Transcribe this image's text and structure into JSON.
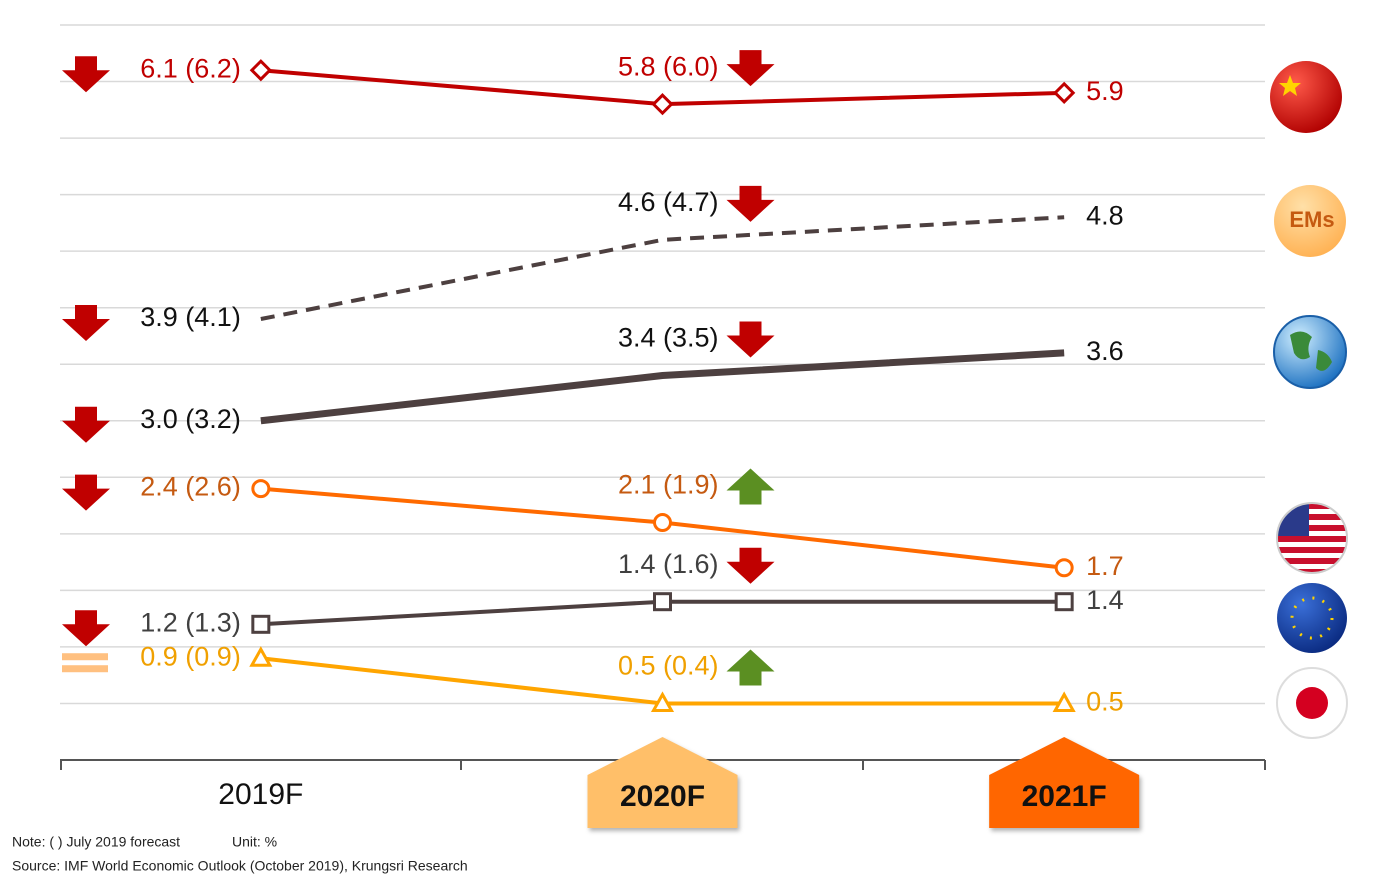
{
  "chart_data": {
    "type": "line",
    "categories": [
      "2019F",
      "2020F",
      "2021F"
    ],
    "category_badges": [
      null,
      "#ffbf69",
      "#ff6600"
    ],
    "ylim": [
      0,
      6.5
    ],
    "yticks": [
      0,
      0.5,
      1,
      1.5,
      2,
      2.5,
      3,
      3.5,
      4,
      4.5,
      5,
      5.5,
      6,
      6.5
    ],
    "grid": true,
    "series": [
      {
        "color": "#c00000",
        "label_color": "#c00000",
        "marker": "diamond",
        "dash": false,
        "width": 4,
        "values": [
          6.1,
          5.8,
          5.9
        ],
        "value_labels": [
          "6.1 (6.2)",
          "5.8 (6.0)",
          "5.9"
        ],
        "revisions": [
          "down",
          "down",
          null
        ]
      },
      {
        "color": "#4d4040",
        "label_color": "#111111",
        "marker": null,
        "dash": true,
        "width": 4,
        "icon_text": "EMs",
        "values": [
          3.9,
          4.6,
          4.8
        ],
        "value_labels": [
          "3.9 (4.1)",
          "4.6 (4.7)",
          "4.8"
        ],
        "revisions": [
          "down",
          "down",
          null
        ]
      },
      {
        "color": "#4d4040",
        "label_color": "#111111",
        "marker": null,
        "dash": false,
        "width": 7,
        "values": [
          3.0,
          3.4,
          3.6
        ],
        "value_labels": [
          "3.0 (3.2)",
          "3.4 (3.5)",
          "3.6"
        ],
        "revisions": [
          "down",
          "down",
          null
        ]
      },
      {
        "color": "#ff6a00",
        "label_color": "#c55a11",
        "marker": "circle",
        "dash": false,
        "width": 4,
        "values": [
          2.4,
          2.1,
          1.7
        ],
        "value_labels": [
          "2.4 (2.6)",
          "2.1 (1.9)",
          "1.7"
        ],
        "revisions": [
          "down",
          "up",
          null
        ]
      },
      {
        "color": "#4d4040",
        "label_color": "#404040",
        "marker": "square",
        "dash": false,
        "width": 4,
        "values": [
          1.2,
          1.4,
          1.4
        ],
        "value_labels": [
          "1.2 (1.3)",
          "1.4 (1.6)",
          "1.4"
        ],
        "revisions": [
          "down",
          "down",
          null
        ]
      },
      {
        "color": "#ffa500",
        "label_color": "#f0a000",
        "marker": "triangle",
        "dash": false,
        "width": 4,
        "values": [
          0.9,
          0.5,
          0.5
        ],
        "value_labels": [
          "0.9 (0.9)",
          "0.5 (0.4)",
          "0.5"
        ],
        "revisions": [
          "equal",
          "up",
          null
        ]
      }
    ],
    "notes": [
      "Note: (   ) July 2019 forecast",
      "Unit: %",
      "Source: IMF World Economic Outlook (October 2019), Krungsri Research"
    ]
  }
}
